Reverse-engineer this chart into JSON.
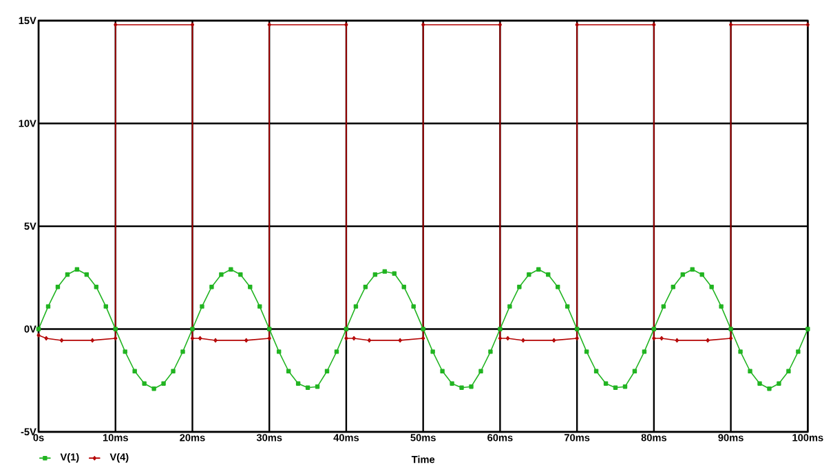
{
  "chart_data": {
    "type": "line",
    "xlabel": "Time",
    "xlim": [
      0,
      100
    ],
    "ylim": [
      -5,
      15
    ],
    "xticks": [
      {
        "value": 0,
        "label": "0s"
      },
      {
        "value": 10,
        "label": "10ms"
      },
      {
        "value": 20,
        "label": "20ms"
      },
      {
        "value": 30,
        "label": "30ms"
      },
      {
        "value": 40,
        "label": "40ms"
      },
      {
        "value": 50,
        "label": "50ms"
      },
      {
        "value": 60,
        "label": "60ms"
      },
      {
        "value": 70,
        "label": "70ms"
      },
      {
        "value": 80,
        "label": "80ms"
      },
      {
        "value": 90,
        "label": "90ms"
      },
      {
        "value": 100,
        "label": "100ms"
      }
    ],
    "yticks": [
      {
        "value": -5,
        "label": "-5V"
      },
      {
        "value": 0,
        "label": "0V"
      },
      {
        "value": 5,
        "label": "5V"
      },
      {
        "value": 10,
        "label": "10V"
      },
      {
        "value": 15,
        "label": "15V"
      }
    ],
    "grid": true,
    "legend": "bottom left",
    "series": [
      {
        "name": "V(1)",
        "color": "#22b422",
        "marker": "square",
        "x": [
          0,
          1.25,
          2.5,
          3.75,
          5,
          6.25,
          7.5,
          8.75,
          10,
          11.25,
          12.5,
          13.75,
          15,
          16.25,
          17.5,
          18.75,
          20,
          21.25,
          22.5,
          23.75,
          25,
          26.25,
          27.5,
          28.75,
          30,
          31.25,
          32.5,
          33.75,
          35,
          36.25,
          37.5,
          38.75,
          40,
          41.25,
          42.5,
          43.75,
          45,
          46.25,
          47.5,
          48.75,
          50,
          51.25,
          52.5,
          53.75,
          55,
          56.25,
          57.5,
          58.75,
          60,
          61.25,
          62.5,
          63.75,
          65,
          66.25,
          67.5,
          68.75,
          70,
          71.25,
          72.5,
          73.75,
          75,
          76.25,
          77.5,
          78.75,
          80,
          81.25,
          82.5,
          83.75,
          85,
          86.25,
          87.5,
          88.75,
          90,
          91.25,
          92.5,
          93.75,
          95,
          96.25,
          97.5,
          98.75,
          100
        ],
        "values": [
          0,
          1.1,
          2.05,
          2.65,
          2.9,
          2.65,
          2.05,
          1.1,
          0,
          -1.1,
          -2.05,
          -2.65,
          -2.9,
          -2.65,
          -2.05,
          -1.1,
          0,
          1.1,
          2.05,
          2.65,
          2.9,
          2.65,
          2.05,
          1.1,
          0,
          -1.1,
          -2.05,
          -2.65,
          -2.85,
          -2.8,
          -2.05,
          -1.1,
          0,
          1.1,
          2.05,
          2.65,
          2.8,
          2.7,
          2.05,
          1.1,
          0,
          -1.1,
          -2.05,
          -2.65,
          -2.85,
          -2.8,
          -2.05,
          -1.1,
          0,
          1.1,
          2.05,
          2.65,
          2.9,
          2.65,
          2.05,
          1.1,
          0,
          -1.1,
          -2.05,
          -2.65,
          -2.85,
          -2.8,
          -2.05,
          -1.1,
          0,
          1.1,
          2.05,
          2.65,
          2.9,
          2.65,
          2.05,
          1.1,
          0,
          -1.1,
          -2.05,
          -2.65,
          -2.9,
          -2.65,
          -2.05,
          -1.1,
          0
        ]
      },
      {
        "name": "V(4)",
        "color": "#b40000",
        "marker": "diamond",
        "x": [
          0,
          1,
          3,
          7,
          10,
          10,
          20,
          20,
          21,
          23,
          27,
          30,
          30,
          40,
          40,
          41,
          43,
          47,
          50,
          50,
          60,
          60,
          61,
          63,
          67,
          70,
          70,
          80,
          80,
          81,
          83,
          87,
          90,
          90,
          100
        ],
        "values": [
          -0.3,
          -0.45,
          -0.55,
          -0.55,
          -0.45,
          14.8,
          14.8,
          -0.45,
          -0.45,
          -0.55,
          -0.55,
          -0.45,
          14.8,
          14.8,
          -0.45,
          -0.45,
          -0.55,
          -0.55,
          -0.45,
          14.8,
          14.8,
          -0.45,
          -0.45,
          -0.55,
          -0.55,
          -0.45,
          14.8,
          14.8,
          -0.45,
          -0.45,
          -0.55,
          -0.55,
          -0.45,
          14.8,
          14.8
        ]
      }
    ]
  }
}
